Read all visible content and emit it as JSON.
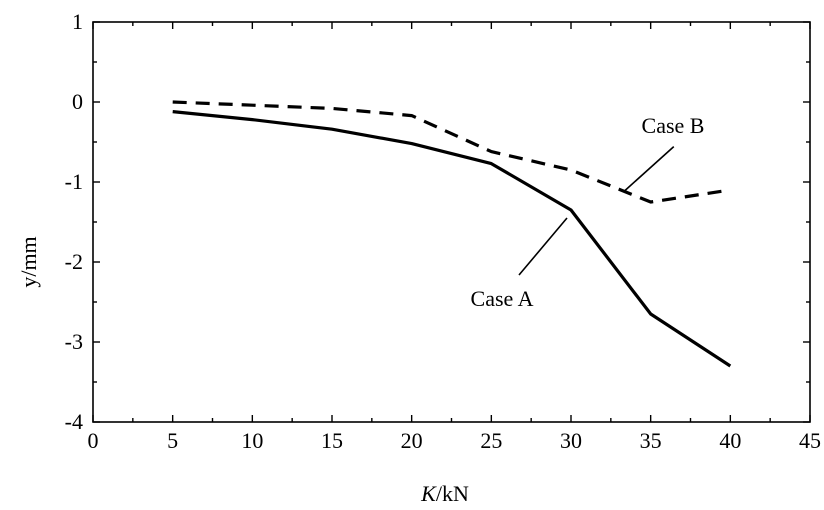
{
  "chart_data": {
    "type": "line",
    "title": "",
    "xlabel": {
      "italic": "K",
      "rest": "/kN"
    },
    "ylabel": "y/mm",
    "xlim": [
      0,
      45
    ],
    "ylim": [
      -4,
      1
    ],
    "xticks": [
      0,
      5,
      10,
      15,
      20,
      25,
      30,
      35,
      40,
      45
    ],
    "yticks": [
      1,
      0,
      -1,
      -2,
      -3,
      -4
    ],
    "xtick_labels": [
      "0",
      "5",
      "10",
      "15",
      "20",
      "25",
      "30",
      "35",
      "40",
      "45"
    ],
    "ytick_labels": [
      "1",
      "0",
      "-1",
      "-2",
      "-3",
      "-4"
    ],
    "grid": false,
    "legend": "none",
    "series": [
      {
        "name": "Case A",
        "style": "solid",
        "color": "#000000",
        "x": [
          5,
          10,
          15,
          20,
          25,
          30,
          35,
          40
        ],
        "y": [
          -0.12,
          -0.22,
          -0.34,
          -0.52,
          -0.77,
          -1.35,
          -2.65,
          -3.3
        ]
      },
      {
        "name": "Case B",
        "style": "dashed",
        "color": "#000000",
        "x": [
          5,
          10,
          15,
          20,
          25,
          30,
          35,
          40
        ],
        "y": [
          0.0,
          -0.04,
          -0.08,
          -0.17,
          -0.62,
          -0.85,
          -1.25,
          -1.1
        ]
      }
    ],
    "annotations": [
      {
        "text": "Case A",
        "series": 0,
        "x": 30,
        "y": -1.35
      },
      {
        "text": "Case B",
        "series": 1,
        "x": 33.5,
        "y": -1.07
      }
    ]
  }
}
